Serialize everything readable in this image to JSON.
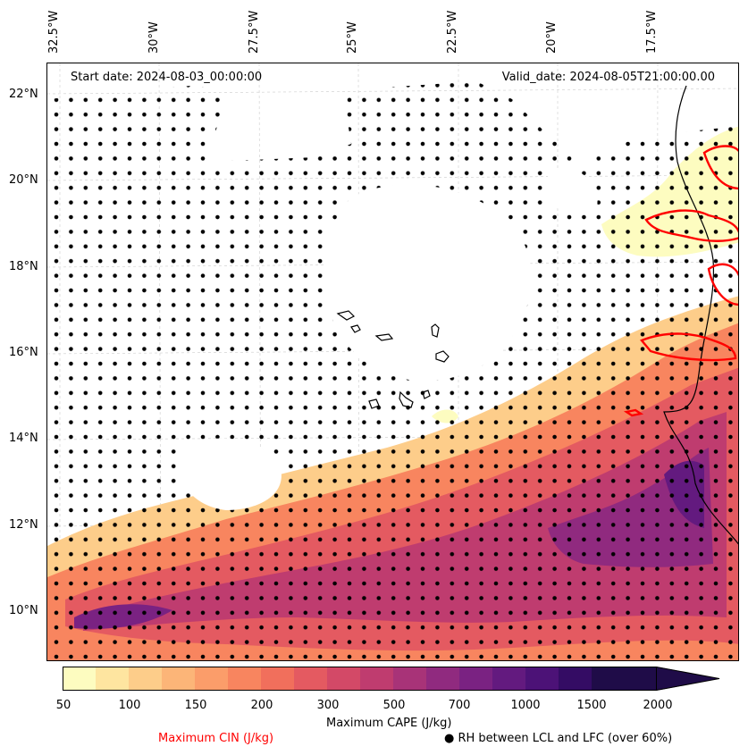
{
  "map": {
    "start_date": "Start date: 2024-08-03_00:00:00",
    "valid_date": "Valid_date: 2024-08-05T21:00:00.00",
    "lon_labels": [
      "32.5°W",
      "30°W",
      "27.5°W",
      "25°W",
      "22.5°W",
      "20°W",
      "17.5°W"
    ],
    "lat_labels": [
      "22°N",
      "20°N",
      "18°N",
      "16°N",
      "14°N",
      "12°N",
      "10°N"
    ],
    "cin_contour_color": "#ff0000",
    "coastline_color": "#000000"
  },
  "colorbar": {
    "ticks": [
      "50",
      "100",
      "150",
      "200",
      "300",
      "500",
      "700",
      "1000",
      "1500",
      "2000"
    ],
    "colors": [
      "#fdfcc0",
      "#fee5a0",
      "#fdcd8a",
      "#fcb578",
      "#fb9d6a",
      "#f8855f",
      "#f16f5c",
      "#e45a61",
      "#d34967",
      "#bf3c6f",
      "#a83378",
      "#902a7f",
      "#7a2282",
      "#631a7f",
      "#4c1277",
      "#340c64",
      "#1f0c48"
    ],
    "label": "Maximum CAPE (J/kg)",
    "cin_label": "Maximum CIN (J/kg)",
    "rh_label": "● RH between LCL and LFC (over 60%)"
  }
}
